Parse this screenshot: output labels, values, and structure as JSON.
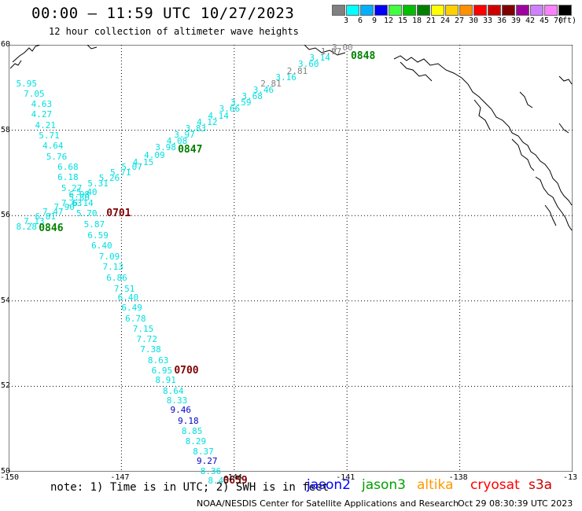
{
  "header": {
    "title": "00:00 — 11:59 UTC 10/27/2023",
    "subtitle": "12 hour collection of altimeter wave heights"
  },
  "color_scale": {
    "unit": "(ft)",
    "bins": [
      {
        "label": "3",
        "color": "#808080"
      },
      {
        "label": "6",
        "color": "#00ffff"
      },
      {
        "label": "9",
        "color": "#00b0ff"
      },
      {
        "label": "12",
        "color": "#0000ff"
      },
      {
        "label": "15",
        "color": "#40ff40"
      },
      {
        "label": "18",
        "color": "#00c000"
      },
      {
        "label": "21",
        "color": "#008000"
      },
      {
        "label": "24",
        "color": "#ffff00"
      },
      {
        "label": "27",
        "color": "#ffd000"
      },
      {
        "label": "30",
        "color": "#ff9000"
      },
      {
        "label": "33",
        "color": "#ff0000"
      },
      {
        "label": "36",
        "color": "#d00000"
      },
      {
        "label": "39",
        "color": "#800000"
      },
      {
        "label": "42",
        "color": "#a000a0"
      },
      {
        "label": "45",
        "color": "#d080ff"
      },
      {
        "label": "70",
        "color": "#ff80ff"
      },
      {
        "label": "",
        "color": "#000000"
      }
    ]
  },
  "axes": {
    "lat_labels": [
      "60",
      "58",
      "56",
      "54",
      "52",
      "50"
    ],
    "lon_labels": [
      "-150",
      "-147",
      "-144",
      "-141",
      "-138",
      "-13"
    ]
  },
  "colors": {
    "gray": "#808080",
    "cyan": "#00e0e0",
    "blue": "#0000cc",
    "jason3": "#008000",
    "cryosat": "#800000"
  },
  "map_data": {
    "tracks": [
      {
        "name": "cross-track",
        "points": [
          {
            "v": "8.28",
            "lat": 55.75,
            "lon": -149.8,
            "c": "cyan"
          },
          {
            "v": "7.13",
            "lat": 55.88,
            "lon": -149.6,
            "c": "cyan"
          },
          {
            "v": "6.81",
            "lat": 55.98,
            "lon": -149.3,
            "c": "cyan"
          },
          {
            "v": "7.47",
            "lat": 56.1,
            "lon": -149.1,
            "c": "cyan"
          },
          {
            "v": "7.90",
            "lat": 56.2,
            "lon": -148.8,
            "c": "cyan"
          },
          {
            "v": "7.63",
            "lat": 56.3,
            "lon": -148.6,
            "c": "cyan"
          },
          {
            "v": "6.14",
            "lat": 56.3,
            "lon": -148.3,
            "c": "cyan"
          },
          {
            "v": "5.80",
            "lat": 56.42,
            "lon": -148.4,
            "c": "cyan"
          },
          {
            "v": "5.40",
            "lat": 56.55,
            "lon": -148.2,
            "c": "cyan"
          },
          {
            "v": "5.31",
            "lat": 56.75,
            "lon": -147.9,
            "c": "cyan"
          },
          {
            "v": "5.26",
            "lat": 56.88,
            "lon": -147.6,
            "c": "cyan"
          },
          {
            "v": "5.71",
            "lat": 57.02,
            "lon": -147.3,
            "c": "cyan"
          },
          {
            "v": "5.07",
            "lat": 57.15,
            "lon": -147.0,
            "c": "cyan"
          },
          {
            "v": "4.15",
            "lat": 57.25,
            "lon": -146.7,
            "c": "cyan"
          },
          {
            "v": "4.09",
            "lat": 57.42,
            "lon": -146.4,
            "c": "cyan"
          },
          {
            "v": "3.98",
            "lat": 57.6,
            "lon": -146.1,
            "c": "cyan"
          },
          {
            "v": "4.08",
            "lat": 57.75,
            "lon": -145.8,
            "c": "cyan"
          },
          {
            "v": "3.97",
            "lat": 57.9,
            "lon": -145.6,
            "c": "cyan"
          },
          {
            "v": "3.83",
            "lat": 58.05,
            "lon": -145.3,
            "c": "cyan"
          },
          {
            "v": "4.12",
            "lat": 58.2,
            "lon": -145.0,
            "c": "cyan"
          },
          {
            "v": "4.14",
            "lat": 58.35,
            "lon": -144.7,
            "c": "cyan"
          },
          {
            "v": "3.66",
            "lat": 58.5,
            "lon": -144.4,
            "c": "cyan"
          },
          {
            "v": "3.59",
            "lat": 58.65,
            "lon": -144.1,
            "c": "cyan"
          },
          {
            "v": "3.68",
            "lat": 58.8,
            "lon": -143.8,
            "c": "cyan"
          },
          {
            "v": "3.46",
            "lat": 58.95,
            "lon": -143.5,
            "c": "cyan"
          },
          {
            "v": "2.81",
            "lat": 59.1,
            "lon": -143.3,
            "c": "gray"
          },
          {
            "v": "3.16",
            "lat": 59.25,
            "lon": -142.9,
            "c": "cyan"
          },
          {
            "v": "2.81",
            "lat": 59.4,
            "lon": -142.6,
            "c": "gray"
          },
          {
            "v": "3.60",
            "lat": 59.55,
            "lon": -142.3,
            "c": "cyan"
          },
          {
            "v": "3.14",
            "lat": 59.7,
            "lon": -142.0,
            "c": "cyan"
          },
          {
            "v": "1.97",
            "lat": 59.85,
            "lon": -141.7,
            "c": "gray"
          },
          {
            "v": "3.00",
            "lat": 59.95,
            "lon": -141.4,
            "c": "gray"
          }
        ]
      },
      {
        "name": "descending-track",
        "points": [
          {
            "v": "5.95",
            "lat": 59.1,
            "lon": -149.8,
            "c": "cyan"
          },
          {
            "v": "7.05",
            "lat": 58.85,
            "lon": -149.6,
            "c": "cyan"
          },
          {
            "v": "4.63",
            "lat": 58.62,
            "lon": -149.4,
            "c": "cyan"
          },
          {
            "v": "4.27",
            "lat": 58.38,
            "lon": -149.4,
            "c": "cyan"
          },
          {
            "v": "4.21",
            "lat": 58.12,
            "lon": -149.3,
            "c": "cyan"
          },
          {
            "v": "5.71",
            "lat": 57.88,
            "lon": -149.2,
            "c": "cyan"
          },
          {
            "v": "4.64",
            "lat": 57.65,
            "lon": -149.1,
            "c": "cyan"
          },
          {
            "v": "5.76",
            "lat": 57.38,
            "lon": -149.0,
            "c": "cyan"
          },
          {
            "v": "6.68",
            "lat": 57.15,
            "lon": -148.7,
            "c": "cyan"
          },
          {
            "v": "6.18",
            "lat": 56.9,
            "lon": -148.7,
            "c": "cyan"
          },
          {
            "v": "5.27",
            "lat": 56.65,
            "lon": -148.6,
            "c": "cyan"
          },
          {
            "v": "6.98",
            "lat": 56.5,
            "lon": -148.4,
            "c": "cyan"
          },
          {
            "v": "5.70",
            "lat": 56.05,
            "lon": -148.2,
            "c": "cyan"
          },
          {
            "v": "5.87",
            "lat": 55.8,
            "lon": -148.0,
            "c": "cyan"
          },
          {
            "v": "6.59",
            "lat": 55.55,
            "lon": -147.9,
            "c": "cyan"
          },
          {
            "v": "6.40",
            "lat": 55.3,
            "lon": -147.8,
            "c": "cyan"
          },
          {
            "v": "7.09",
            "lat": 55.05,
            "lon": -147.6,
            "c": "cyan"
          },
          {
            "v": "7.13",
            "lat": 54.8,
            "lon": -147.5,
            "c": "cyan"
          },
          {
            "v": "6.86",
            "lat": 54.55,
            "lon": -147.4,
            "c": "cyan"
          },
          {
            "v": "7.51",
            "lat": 54.3,
            "lon": -147.2,
            "c": "cyan"
          },
          {
            "v": "6.40",
            "lat": 54.08,
            "lon": -147.1,
            "c": "cyan"
          },
          {
            "v": "6.49",
            "lat": 53.85,
            "lon": -147.0,
            "c": "cyan"
          },
          {
            "v": "6.78",
            "lat": 53.6,
            "lon": -146.9,
            "c": "cyan"
          },
          {
            "v": "7.15",
            "lat": 53.35,
            "lon": -146.7,
            "c": "cyan"
          },
          {
            "v": "7.72",
            "lat": 53.12,
            "lon": -146.6,
            "c": "cyan"
          },
          {
            "v": "7.38",
            "lat": 52.88,
            "lon": -146.5,
            "c": "cyan"
          },
          {
            "v": "8.63",
            "lat": 52.62,
            "lon": -146.3,
            "c": "cyan"
          },
          {
            "v": "6.95",
            "lat": 52.38,
            "lon": -146.2,
            "c": "cyan"
          },
          {
            "v": "8.91",
            "lat": 52.15,
            "lon": -146.1,
            "c": "cyan"
          },
          {
            "v": "8.64",
            "lat": 51.9,
            "lon": -145.9,
            "c": "cyan"
          },
          {
            "v": "8.33",
            "lat": 51.68,
            "lon": -145.8,
            "c": "cyan"
          },
          {
            "v": "9.46",
            "lat": 51.45,
            "lon": -145.7,
            "c": "blue"
          },
          {
            "v": "9.18",
            "lat": 51.2,
            "lon": -145.5,
            "c": "blue"
          },
          {
            "v": "8.85",
            "lat": 50.95,
            "lon": -145.4,
            "c": "cyan"
          },
          {
            "v": "8.29",
            "lat": 50.72,
            "lon": -145.3,
            "c": "cyan"
          },
          {
            "v": "8.37",
            "lat": 50.48,
            "lon": -145.1,
            "c": "cyan"
          },
          {
            "v": "9.27",
            "lat": 50.25,
            "lon": -145.0,
            "c": "blue"
          },
          {
            "v": "8.36",
            "lat": 50.02,
            "lon": -144.9,
            "c": "cyan"
          },
          {
            "v": "8.43",
            "lat": 49.8,
            "lon": -144.7,
            "c": "cyan"
          }
        ]
      }
    ],
    "pass_labels": [
      {
        "text": "0846",
        "lat": 55.7,
        "lon": -149.2,
        "c": "jason3"
      },
      {
        "text": "0847",
        "lat": 57.55,
        "lon": -145.5,
        "c": "jason3"
      },
      {
        "text": "0848",
        "lat": 59.75,
        "lon": -140.9,
        "c": "jason3"
      },
      {
        "text": "0701",
        "lat": 56.05,
        "lon": -147.4,
        "c": "cryosat"
      },
      {
        "text": "0700",
        "lat": 52.38,
        "lon": -145.6,
        "c": "cryosat"
      },
      {
        "text": "0659",
        "lat": 49.8,
        "lon": -144.3,
        "c": "cryosat"
      }
    ]
  },
  "footer": {
    "note": "note: 1) Time is in UTC; 2) SWH is in feet",
    "satellites": [
      {
        "name": "jason2",
        "color": "#0000ff"
      },
      {
        "name": "jason3",
        "color": "#00a000"
      },
      {
        "name": "altika",
        "color": "#ff9900"
      },
      {
        "name": "cryosat",
        "color": "#ff0000"
      },
      {
        "name": "s3a",
        "color": "#cc0000"
      }
    ],
    "credit": "NOAA/NESDIS Center for Satellite Applications and Research",
    "timestamp": "Oct 29 08:30:39 UTC 2023"
  }
}
